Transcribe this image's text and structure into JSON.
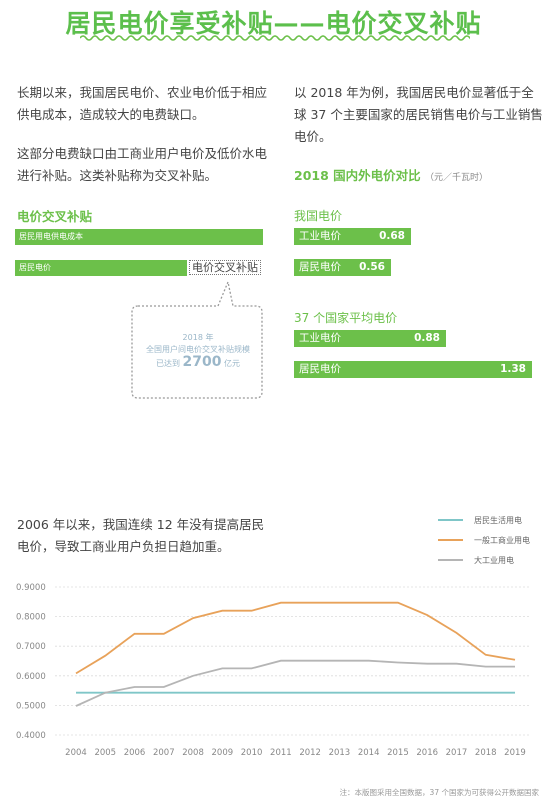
{
  "header": {
    "title": "居民电价享受补贴——电价交叉补贴"
  },
  "left": {
    "para1": [
      "长期以来，我国居民电价、农业电价低于相应",
      "供电成本，造成较大的电费缺口。"
    ],
    "para2": [
      "这部分电费缺口由工商业用户电价及低价水电",
      "进行补贴。这类补贴称为交叉补贴。"
    ],
    "section_title": "电价交叉补贴",
    "bar_cost_label": "居民用电供电成本",
    "bar_price_label": "居民电价",
    "cross_label": "电价交叉补贴",
    "callout_line1": "2018 年",
    "callout_line2": "全国用户间电价交叉补贴规模",
    "callout_prefix": "已达到",
    "callout_value": "2700",
    "callout_unit": "亿元"
  },
  "right": {
    "para": [
      "以 2018 年为例，我国居民电价显著低于全",
      "球 37 个主要国家的居民销售电价与工业销售",
      "电价。"
    ],
    "section_title": "2018 国内外电价对比",
    "section_unit": "（元／千瓦时）",
    "china_title": "我国电价",
    "china_industry_label": "工业电价",
    "china_industry_value": "0.68",
    "china_resident_label": "居民电价",
    "china_resident_value": "0.56",
    "intl_title": "37 个国家平均电价",
    "intl_industry_label": "工业电价",
    "intl_industry_value": "0.88",
    "intl_resident_label": "居民电价",
    "intl_resident_value": "1.38",
    "bar_values": {
      "china_industry": 0.68,
      "china_resident": 0.56,
      "intl_industry": 0.88,
      "intl_resident": 1.38
    }
  },
  "bottom": {
    "para": [
      "2006 年以来，我国连续 12 年没有提高居民",
      "电价，导致工商业用户负担日趋加重。"
    ]
  },
  "footnote": "注：本版图采用全国数据，37 个国家为可获得公开数据国家",
  "colors": {
    "green": "#6cc04a",
    "resident": "#7fc6c8",
    "commercial": "#e8a25a",
    "industry": "#b5b5b5"
  },
  "chart_data": {
    "type": "line",
    "x": [
      "2004",
      "2005",
      "2006",
      "2007",
      "2008",
      "2009",
      "2010",
      "2011",
      "2012",
      "2013",
      "2014",
      "2015",
      "2016",
      "2017",
      "2018",
      "2019"
    ],
    "ylim": [
      0.4,
      0.9
    ],
    "yticks": [
      "0.4000",
      "0.5000",
      "0.6000",
      "0.7000",
      "0.8000",
      "0.9000"
    ],
    "series": [
      {
        "name": "居民生活用电",
        "color": "#7fc6c8",
        "values": [
          0.543,
          0.543,
          0.543,
          0.543,
          0.543,
          0.543,
          0.543,
          0.543,
          0.543,
          0.543,
          0.543,
          0.543,
          0.543,
          0.543,
          0.543,
          0.543
        ]
      },
      {
        "name": "一般工商业用电",
        "color": "#e8a25a",
        "values": [
          0.608,
          0.668,
          0.742,
          0.742,
          0.795,
          0.82,
          0.82,
          0.847,
          0.847,
          0.847,
          0.847,
          0.847,
          0.805,
          0.745,
          0.671,
          0.654
        ]
      },
      {
        "name": "大工业用电",
        "color": "#b5b5b5",
        "values": [
          0.498,
          0.543,
          0.562,
          0.562,
          0.6,
          0.625,
          0.625,
          0.651,
          0.651,
          0.651,
          0.651,
          0.645,
          0.641,
          0.641,
          0.631,
          0.631
        ]
      }
    ]
  }
}
